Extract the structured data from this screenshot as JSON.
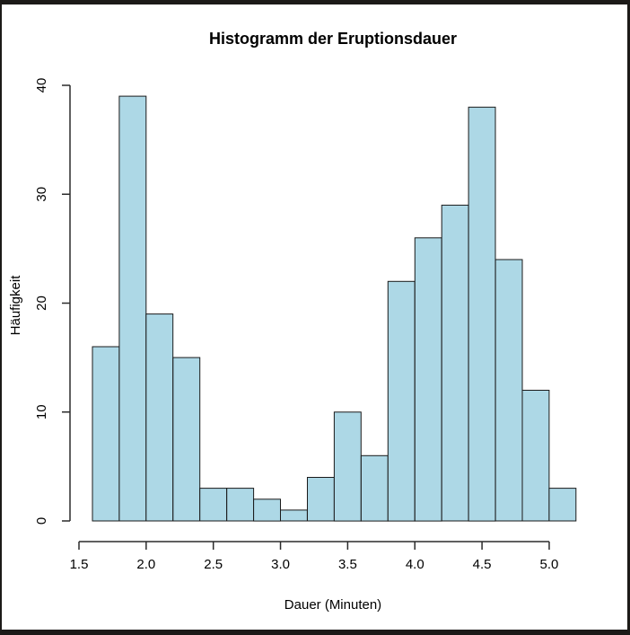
{
  "chart_data": {
    "type": "histogram",
    "title": "Histogramm der Eruptionsdauer",
    "xlabel": "Dauer (Minuten)",
    "ylabel": "Häufigkeit",
    "bin_start": 1.6,
    "bin_width": 0.2,
    "counts": [
      16,
      39,
      19,
      15,
      3,
      3,
      2,
      1,
      4,
      10,
      6,
      22,
      26,
      29,
      38,
      24,
      12,
      3
    ],
    "x_ticks": [
      1.5,
      2.0,
      2.5,
      3.0,
      3.5,
      4.0,
      4.5,
      5.0
    ],
    "x_tick_labels": [
      "1.5",
      "2.0",
      "2.5",
      "3.0",
      "3.5",
      "4.0",
      "4.5",
      "5.0"
    ],
    "y_ticks": [
      0,
      10,
      20,
      30,
      40
    ],
    "y_tick_labels": [
      "0",
      "10",
      "20",
      "30",
      "40"
    ],
    "xlim": [
      1.5,
      5.0
    ],
    "ylim": [
      0,
      40
    ],
    "grid": false,
    "legend": "none",
    "bar_fill": "#ADD8E6",
    "bar_border": "#1a1a1a",
    "axis_color": "#2b2b2b",
    "background": "#ffffff",
    "frame_color": "#1c1a18"
  }
}
